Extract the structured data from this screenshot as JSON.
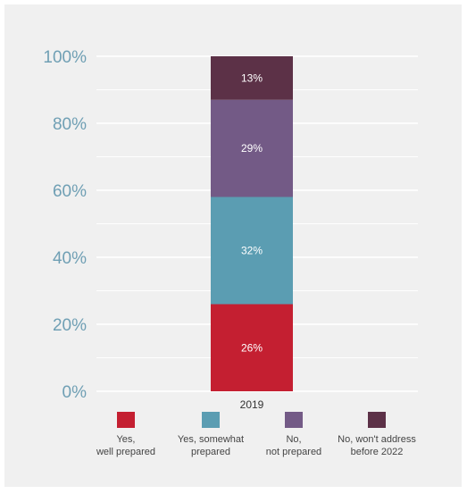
{
  "chart_data": {
    "type": "bar",
    "stacked": true,
    "categories": [
      "2019"
    ],
    "series": [
      {
        "name": "Yes,\nwell prepared",
        "values": [
          26
        ],
        "color": "#c41f31"
      },
      {
        "name": "Yes, somewhat\nprepared",
        "values": [
          32
        ],
        "color": "#5b9db2"
      },
      {
        "name": "No,\nnot prepared",
        "values": [
          29
        ],
        "color": "#735a86"
      },
      {
        "name": "No, won't address\nbefore 2022",
        "values": [
          13
        ],
        "color": "#5c3147"
      }
    ],
    "data_labels": [
      "26%",
      "32%",
      "29%",
      "13%"
    ],
    "y_ticks": [
      "0%",
      "20%",
      "40%",
      "60%",
      "80%",
      "100%"
    ],
    "ylim": [
      0,
      100
    ],
    "grid": true,
    "legend_position": "bottom"
  }
}
